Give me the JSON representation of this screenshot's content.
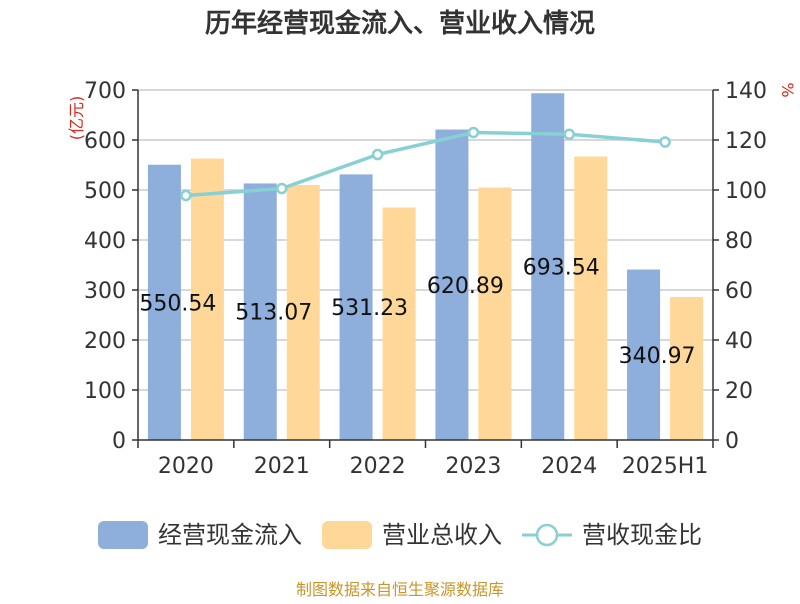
{
  "chart_data": {
    "type": "bar",
    "title": "历年经营现金流入、营业收入情况",
    "categories": [
      "2020",
      "2021",
      "2022",
      "2023",
      "2024",
      "2025H1"
    ],
    "left_axis": {
      "unit": "(亿元)",
      "ylim": [
        0,
        700
      ],
      "ticks": [
        "0",
        "100",
        "200",
        "300",
        "400",
        "500",
        "600",
        "700"
      ]
    },
    "right_axis": {
      "unit": "%",
      "ylim": [
        0,
        140
      ],
      "ticks": [
        "0",
        "20",
        "40",
        "60",
        "80",
        "100",
        "120",
        "140"
      ]
    },
    "series": [
      {
        "name": "经营现金流入",
        "kind": "bar",
        "axis": "left",
        "color": "#8eaedb",
        "values": [
          550.54,
          513.07,
          531.23,
          620.89,
          693.54,
          340.97
        ],
        "labels": [
          "550.54",
          "513.07",
          "531.23",
          "620.89",
          "693.54",
          "340.97"
        ]
      },
      {
        "name": "营业总收入",
        "kind": "bar",
        "axis": "left",
        "color": "#ffd899",
        "values": [
          563,
          510,
          465,
          505,
          567,
          286
        ]
      },
      {
        "name": "营收现金比",
        "kind": "line",
        "axis": "right",
        "color": "#88d0d3",
        "values": [
          97.8,
          100.6,
          114.2,
          123.0,
          122.3,
          119.2
        ]
      }
    ],
    "grid": true,
    "legend_position": "bottom"
  },
  "source": "制图数据来自恒生聚源数据库"
}
